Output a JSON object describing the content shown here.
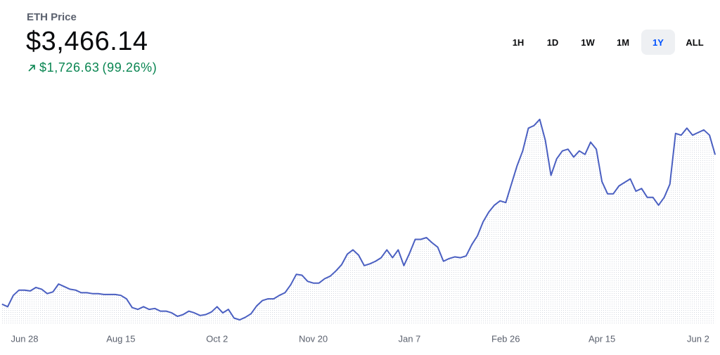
{
  "header": {
    "title": "ETH Price",
    "price": "$3,466.14",
    "change": "$1,726.63",
    "change_percent": "(99.26%)"
  },
  "range_buttons": [
    "1H",
    "1D",
    "1W",
    "1M",
    "1Y",
    "ALL"
  ],
  "selected_range": "1Y",
  "chart_data": {
    "type": "line",
    "categories": [
      null,
      null,
      null,
      null,
      "Jun 28",
      null,
      null,
      null,
      null,
      null,
      null,
      null,
      null,
      null,
      null,
      null,
      null,
      null,
      null,
      null,
      null,
      "Aug 15",
      null,
      null,
      null,
      null,
      null,
      null,
      null,
      null,
      null,
      null,
      null,
      null,
      null,
      null,
      null,
      null,
      "Oct 2",
      null,
      null,
      null,
      null,
      null,
      null,
      null,
      null,
      null,
      null,
      null,
      null,
      null,
      null,
      null,
      null,
      "Nov 20",
      null,
      null,
      null,
      null,
      null,
      null,
      null,
      null,
      null,
      null,
      null,
      null,
      null,
      null,
      null,
      null,
      "Jan 7",
      null,
      null,
      null,
      null,
      null,
      null,
      null,
      null,
      null,
      null,
      null,
      null,
      null,
      null,
      null,
      null,
      "Feb 26",
      null,
      null,
      null,
      null,
      null,
      null,
      null,
      null,
      null,
      null,
      null,
      null,
      null,
      null,
      null,
      null,
      "Apr 15",
      null,
      null,
      null,
      null,
      null,
      null,
      null,
      null,
      null,
      null,
      null,
      null,
      null,
      null,
      null,
      null,
      "Jun 2",
      null,
      null,
      null
    ],
    "values": [
      1760,
      1730,
      1860,
      1920,
      1920,
      1910,
      1950,
      1930,
      1880,
      1900,
      1990,
      1960,
      1930,
      1920,
      1890,
      1890,
      1880,
      1880,
      1870,
      1870,
      1870,
      1860,
      1820,
      1720,
      1700,
      1730,
      1700,
      1710,
      1680,
      1680,
      1660,
      1620,
      1640,
      1680,
      1660,
      1630,
      1640,
      1670,
      1730,
      1660,
      1700,
      1600,
      1580,
      1610,
      1650,
      1740,
      1800,
      1820,
      1820,
      1860,
      1890,
      1980,
      2100,
      2090,
      2020,
      2000,
      2000,
      2050,
      2080,
      2140,
      2210,
      2330,
      2380,
      2320,
      2200,
      2220,
      2250,
      2290,
      2380,
      2290,
      2380,
      2200,
      2340,
      2500,
      2500,
      2520,
      2460,
      2410,
      2250,
      2280,
      2300,
      2290,
      2310,
      2440,
      2540,
      2700,
      2810,
      2890,
      2940,
      2920,
      3130,
      3340,
      3510,
      3770,
      3800,
      3870,
      3630,
      3230,
      3420,
      3510,
      3530,
      3440,
      3510,
      3470,
      3610,
      3530,
      3160,
      3020,
      3020,
      3110,
      3150,
      3190,
      3050,
      3080,
      2980,
      2980,
      2890,
      2980,
      3130,
      3710,
      3690,
      3770,
      3690,
      3720,
      3750,
      3690,
      3466.14
    ],
    "color": "#4a5fc1",
    "ylim": [
      1540,
      4190
    ]
  }
}
